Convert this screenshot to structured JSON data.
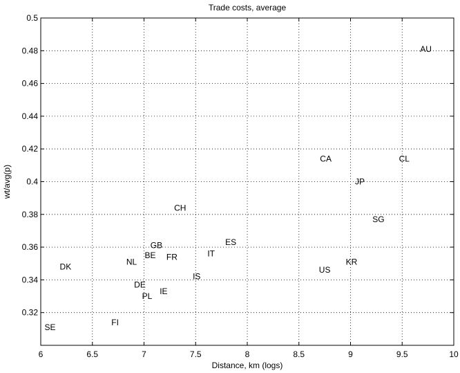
{
  "chart_data": {
    "type": "scatter",
    "title": "Trade costs, average",
    "xlabel": "Distance, km (logs)",
    "ylabel": "wt/avg(p)",
    "xlim": [
      6,
      10
    ],
    "ylim": [
      0.3,
      0.5
    ],
    "xticks": [
      "6",
      "6.5",
      "7",
      "7.5",
      "8",
      "8.5",
      "9",
      "9.5",
      "10"
    ],
    "yticks": [
      "0.32",
      "0.34",
      "0.36",
      "0.38",
      "0.4",
      "0.42",
      "0.44",
      "0.46",
      "0.48",
      "0.5"
    ],
    "xtick_values": [
      6,
      6.5,
      7,
      7.5,
      8,
      8.5,
      9,
      9.5,
      10
    ],
    "ytick_values": [
      0.32,
      0.34,
      0.36,
      0.38,
      0.4,
      0.42,
      0.44,
      0.46,
      0.48,
      0.5
    ],
    "grid": true,
    "points": [
      {
        "label": "AU",
        "x": 9.73,
        "y": 0.481
      },
      {
        "label": "CA",
        "x": 8.76,
        "y": 0.414
      },
      {
        "label": "CL",
        "x": 9.52,
        "y": 0.414
      },
      {
        "label": "JP",
        "x": 9.09,
        "y": 0.4
      },
      {
        "label": "SG",
        "x": 9.27,
        "y": 0.377
      },
      {
        "label": "CH",
        "x": 7.35,
        "y": 0.384
      },
      {
        "label": "ES",
        "x": 7.84,
        "y": 0.363
      },
      {
        "label": "GB",
        "x": 7.12,
        "y": 0.361
      },
      {
        "label": "IT",
        "x": 7.65,
        "y": 0.356
      },
      {
        "label": "BE",
        "x": 7.06,
        "y": 0.355
      },
      {
        "label": "FR",
        "x": 7.27,
        "y": 0.354
      },
      {
        "label": "NL",
        "x": 6.88,
        "y": 0.351
      },
      {
        "label": "DK",
        "x": 6.24,
        "y": 0.348
      },
      {
        "label": "KR",
        "x": 9.01,
        "y": 0.351
      },
      {
        "label": "US",
        "x": 8.75,
        "y": 0.346
      },
      {
        "label": "IS",
        "x": 7.51,
        "y": 0.342
      },
      {
        "label": "DE",
        "x": 6.96,
        "y": 0.337
      },
      {
        "label": "IE",
        "x": 7.19,
        "y": 0.333
      },
      {
        "label": "PL",
        "x": 7.03,
        "y": 0.33
      },
      {
        "label": "FI",
        "x": 6.72,
        "y": 0.314
      },
      {
        "label": "SE",
        "x": 6.09,
        "y": 0.311
      }
    ]
  }
}
